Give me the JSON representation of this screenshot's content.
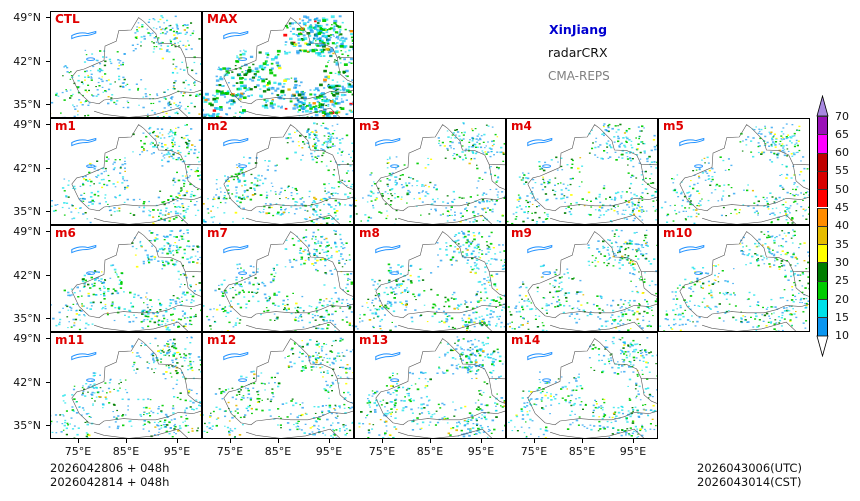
{
  "title": {
    "region": "XinJiang",
    "product": "radarCRX",
    "system": "CMA-REPS",
    "region_color": "#0000d0",
    "system_color": "#808080"
  },
  "panels": [
    {
      "label": "CTL",
      "density": 0.35
    },
    {
      "label": "MAX",
      "density": 1.0
    },
    {
      "label": "m1",
      "density": 0.4
    },
    {
      "label": "m2",
      "density": 0.45
    },
    {
      "label": "m3",
      "density": 0.35
    },
    {
      "label": "m4",
      "density": 0.4
    },
    {
      "label": "m5",
      "density": 0.35
    },
    {
      "label": "m6",
      "density": 0.45
    },
    {
      "label": "m7",
      "density": 0.4
    },
    {
      "label": "m8",
      "density": 0.45
    },
    {
      "label": "m9",
      "density": 0.4
    },
    {
      "label": "m10",
      "density": 0.4
    },
    {
      "label": "m11",
      "density": 0.4
    },
    {
      "label": "m12",
      "density": 0.4
    },
    {
      "label": "m13",
      "density": 0.45
    },
    {
      "label": "m14",
      "density": 0.4
    }
  ],
  "axes": {
    "lat_ticks": [
      "49°N",
      "42°N",
      "35°N"
    ],
    "lon_ticks": [
      "75°E",
      "85°E",
      "95°E"
    ]
  },
  "colorbar": {
    "levels": [
      "10",
      "15",
      "20",
      "25",
      "30",
      "35",
      "40",
      "45",
      "50",
      "55",
      "60",
      "65",
      "70"
    ],
    "colors": [
      "#0a96f0",
      "#00e0e8",
      "#00cc00",
      "#007d00",
      "#ffff00",
      "#e6bc00",
      "#ff8c00",
      "#ff0000",
      "#d80000",
      "#c00000",
      "#ff00ff",
      "#9a10b8"
    ],
    "over_color": "#a888e0",
    "under_color": "#ffffff"
  },
  "footer": {
    "init_utc": "2026042806  +  048h",
    "init_cst": "2026042814  +  048h",
    "valid_utc": "2026043006(UTC)",
    "valid_cst": "2026043014(CST)"
  }
}
